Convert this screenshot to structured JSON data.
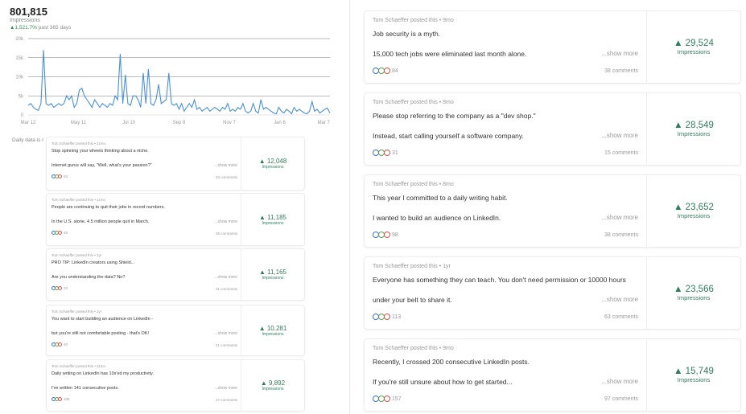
{
  "summary": {
    "total": "801,815",
    "metric": "Impressions",
    "change": "▲1,521.7%",
    "period": "past 365 days",
    "daily_note": "Daily data is r"
  },
  "colors": {
    "line": "#4a90d9",
    "positive": "#2e7d5b",
    "reaction_blue": "#3b6fd4",
    "reaction_green": "#5aa34a",
    "reaction_red": "#d9534f",
    "reaction_orange": "#e08a2c"
  },
  "chart_data": {
    "type": "line",
    "title": "",
    "xlabel": "",
    "ylabel": "",
    "x_ticks": [
      "Mar 12",
      "May 11",
      "Jul 10",
      "Sep 8",
      "Nov 7",
      "Jan 6",
      "Mar 7"
    ],
    "xlim": [
      "Mar 12",
      "Mar 7"
    ],
    "y_ticks": [
      "0",
      "5k",
      "10k",
      "15k",
      "20k"
    ],
    "ylim": [
      0,
      20000
    ],
    "grid": "horizontal",
    "values": [
      2500,
      3000,
      2000,
      1500,
      1200,
      3000,
      17000,
      3000,
      2500,
      3000,
      2000,
      2500,
      3000,
      2500,
      3000,
      5000,
      4000,
      5000,
      2000,
      3000,
      6500,
      7000,
      5000,
      4000,
      3000,
      2000,
      4000,
      3000,
      2000,
      3000,
      2500,
      2000,
      3000,
      2500,
      5000,
      4000,
      16000,
      3000,
      10500,
      3000,
      2500,
      5000,
      5000,
      4000,
      2000,
      11000,
      3000,
      12000,
      3000,
      2500,
      4000,
      8000,
      3000,
      3500,
      4000,
      11000,
      3000,
      2500,
      3000,
      1500,
      3000,
      1000,
      2000,
      3000,
      2000,
      4000,
      1500,
      2000,
      1000,
      1500,
      2000,
      1000,
      1500,
      2000,
      1500,
      1000,
      2000,
      1500,
      3000,
      1000,
      1500,
      1000,
      2000,
      1500,
      3000,
      1000,
      500,
      1000,
      3000,
      1000,
      500,
      4000,
      1500,
      2000,
      1500,
      1000,
      500,
      300,
      2000,
      1000,
      500,
      1500,
      1000,
      300,
      2000,
      1000,
      1500,
      1000,
      500,
      300,
      1000,
      3500,
      1000,
      1500,
      500,
      1000,
      1500,
      1800,
      500
    ]
  },
  "small_posts": [
    {
      "author": "Tom Schaeffer posted this • 11mo",
      "line1": "Stop spinning your wheels thinking about a niche.",
      "line2": "Internet gurus will say, \"Well, what's your passion?\"",
      "more": "...show more",
      "reactions": "63",
      "comments": "33 comments",
      "impressions": "▲ 12,048",
      "impressions_label": "Impressions"
    },
    {
      "author": "Tom Schaeffer posted this • 11mo",
      "line1": "People are continuing to quit their jobs in record numbers.",
      "line2": "In the U.S. alone, 4.5 million people quit in March.",
      "more": "...show more",
      "reactions": "48",
      "comments": "35 comments",
      "impressions": "▲ 11,185",
      "impressions_label": "Impressions"
    },
    {
      "author": "Tom Schaeffer posted this • 1yr",
      "line1": "PRO TIP: LinkedIn creators using Shield...",
      "line2": "Are you understanding the data? No?",
      "more": "...show more",
      "reactions": "22",
      "comments": "31 comments",
      "impressions": "▲ 11,165",
      "impressions_label": "Impressions"
    },
    {
      "author": "Tom Schaeffer posted this • 1yr",
      "line1": "You want to start building an audience on LinkedIn -",
      "line2": "but you're still not comfortable posting - that's OK!",
      "more": "...show more",
      "reactions": "40",
      "comments": "21 comments",
      "impressions": "▲ 10,281",
      "impressions_label": "Impressions"
    },
    {
      "author": "Tom Schaeffer posted this • 11mo",
      "line1": "Daily writing on LinkedIn has 10x'ed my productivity.",
      "line2": "I've written 141 consecutive posts.",
      "more": "...show more",
      "reactions": "108",
      "comments": "47 comments",
      "impressions": "▲ 9,892",
      "impressions_label": "Impressions"
    }
  ],
  "big_posts": [
    {
      "author": "Tom Schaeffer posted this • 9mo",
      "line1": "Job security is a myth.",
      "line2": "15,000 tech jobs were eliminated last month alone.",
      "more": "...show more",
      "reactions": "84",
      "comments": "38 comments",
      "impressions": "▲ 29,524",
      "impressions_label": "Impressions"
    },
    {
      "author": "Tom Schaeffer posted this • 8mo",
      "line1": "Please stop referring to the company as a \"dev shop.\"",
      "line2": "Instead, start calling yourself a software company.",
      "more": "...show more",
      "reactions": "31",
      "comments": "15 comments",
      "impressions": "▲ 28,549",
      "impressions_label": "Impressions"
    },
    {
      "author": "Tom Schaeffer posted this • 8mo",
      "line1": "This year I committed to a daily writing habit.",
      "line2": "I wanted to build an audience on LinkedIn.",
      "more": "...show more",
      "reactions": "98",
      "comments": "38 comments",
      "impressions": "▲ 23,652",
      "impressions_label": "Impressions"
    },
    {
      "author": "Tom Schaeffer posted this • 1yr",
      "line1": "Everyone has something they can teach. You don't need permission or 10000 hours",
      "line2": "under your belt to share it.",
      "more": "...show more",
      "reactions": "113",
      "comments": "63 comments",
      "impressions": "▲ 23,566",
      "impressions_label": "Impressions"
    },
    {
      "author": "Tom Schaeffer posted this • 9mo",
      "line1": "Recently, I crossed 200 consecutive LinkedIn posts.",
      "line2": "If you're still unsure about how to get started...",
      "more": "...show more",
      "reactions": "157",
      "comments": "97 comments",
      "impressions": "▲ 15,749",
      "impressions_label": "Impressions"
    }
  ]
}
